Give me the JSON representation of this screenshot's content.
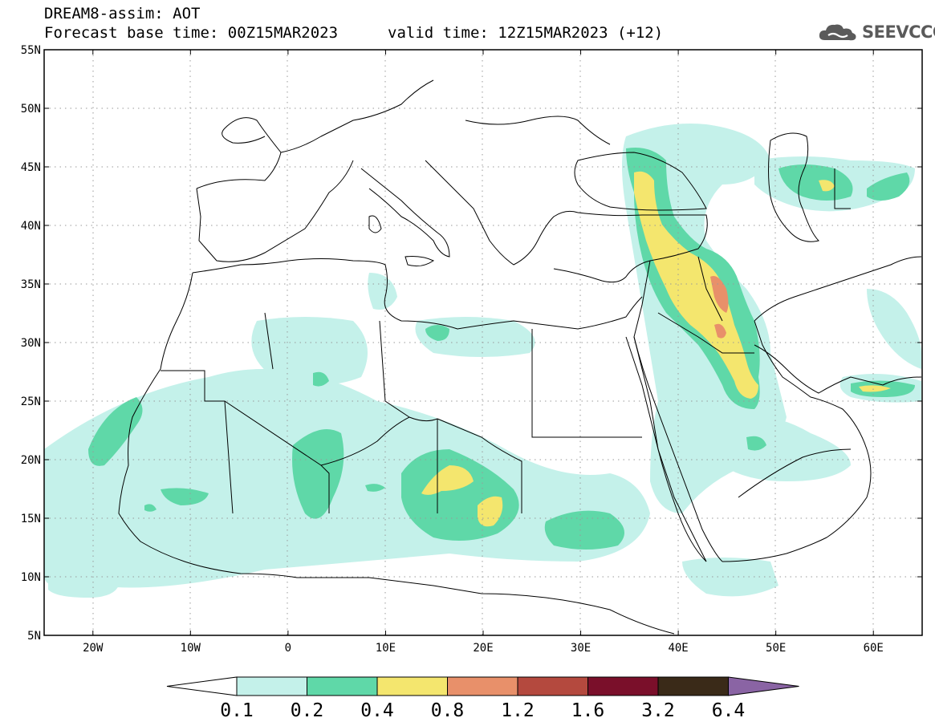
{
  "header": {
    "model_line": "DREAM8-assim: AOT",
    "base_time": "Forecast base time: 00Z15MAR2023",
    "valid_time": "valid time: 12Z15MAR2023 (+12)",
    "logo_text": "SEEVCCC"
  },
  "map": {
    "lat_labels": [
      "55N",
      "50N",
      "45N",
      "40N",
      "35N",
      "30N",
      "25N",
      "20N",
      "15N",
      "10N",
      "5N"
    ],
    "lon_labels": [
      "20W",
      "10W",
      "0",
      "10E",
      "20E",
      "30E",
      "40E",
      "50E",
      "60E"
    ],
    "lat_range": [
      5,
      55
    ],
    "lon_range": [
      -25,
      65
    ],
    "gridlines": "dotted"
  },
  "colorbar": {
    "levels": [
      "0.1",
      "0.2",
      "0.4",
      "0.8",
      "1.2",
      "1.6",
      "3.2",
      "6.4"
    ],
    "colors": [
      "#c4f1ea",
      "#5fd8a8",
      "#f4e66e",
      "#e8906a",
      "#b4493e",
      "#7a0f2a",
      "#3a2a18",
      "#8a64a4"
    ],
    "under_color": "#ffffff"
  }
}
